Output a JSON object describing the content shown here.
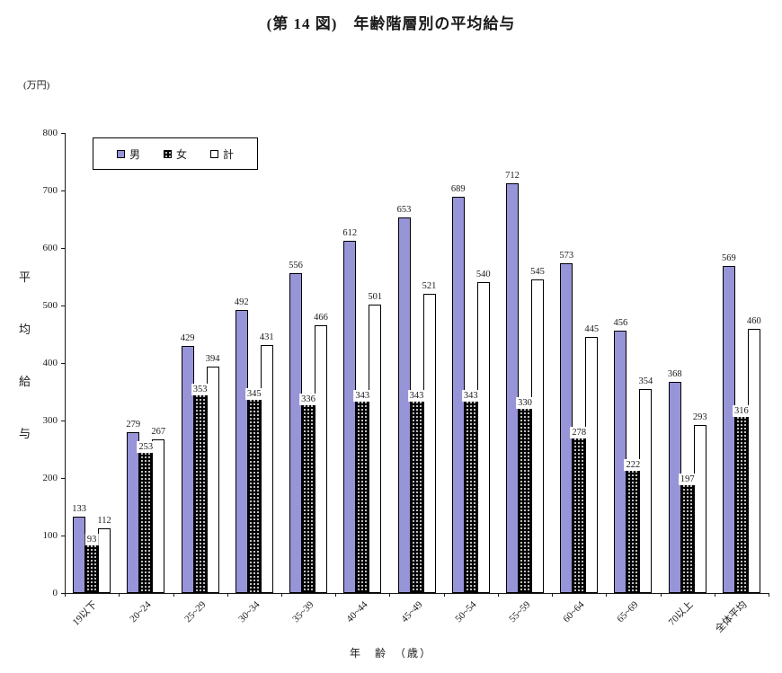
{
  "title": "(第 14 図)　年齢階層別の平均給与",
  "unit_label": "(万円)",
  "y_axis_title": "平均給与",
  "x_axis_title": "年　齢　（歳）",
  "legend": [
    {
      "label": "男",
      "color": "#9794d8",
      "pattern": "solid"
    },
    {
      "label": "女",
      "color": "#000000",
      "pattern": "dots"
    },
    {
      "label": "計",
      "color": "#ffffff",
      "pattern": "outline"
    }
  ],
  "chart_data": {
    "type": "bar",
    "title": "(第14図) 年齢階層別の平均給与",
    "unit": "万円",
    "xlabel": "年齢（歳）",
    "ylabel": "平均給与",
    "ylim": [
      0,
      800
    ],
    "yticks": [
      0,
      100,
      200,
      300,
      400,
      500,
      600,
      700,
      800
    ],
    "grid": false,
    "legend_position": "top-left-inside",
    "categories": [
      "19以下",
      "20~24",
      "25~29",
      "30~34",
      "35~39",
      "40~44",
      "45~49",
      "50~54",
      "55~59",
      "60~64",
      "65~69",
      "70以上",
      "全体平均"
    ],
    "series": [
      {
        "name": "男",
        "key": "male",
        "color": "#9794d8",
        "pattern": "solid",
        "values": [
          133,
          279,
          429,
          492,
          556,
          612,
          653,
          689,
          712,
          573,
          456,
          368,
          569
        ]
      },
      {
        "name": "女",
        "key": "female",
        "color": "#000000",
        "pattern": "dots",
        "values": [
          93,
          253,
          353,
          345,
          336,
          343,
          343,
          343,
          330,
          278,
          222,
          197,
          316
        ]
      },
      {
        "name": "計",
        "key": "total",
        "color": "#ffffff",
        "pattern": "outline",
        "values": [
          112,
          267,
          394,
          431,
          466,
          501,
          521,
          540,
          545,
          445,
          354,
          293,
          460
        ]
      }
    ]
  }
}
